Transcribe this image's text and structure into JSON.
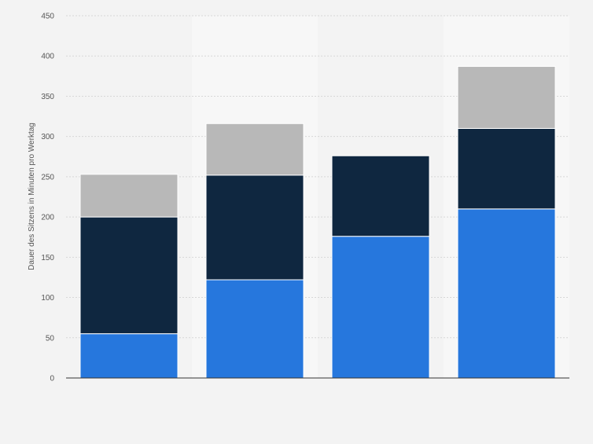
{
  "chart_data": {
    "type": "bar",
    "stacked": true,
    "title": "",
    "xlabel": "",
    "ylabel": "Dauer des Sitzens in Minuten pro Werktag",
    "ylim": [
      0,
      450
    ],
    "yticks": [
      0,
      50,
      100,
      150,
      200,
      250,
      300,
      350,
      400,
      450
    ],
    "categories": [
      "",
      "",
      "",
      ""
    ],
    "series": [
      {
        "values": [
          55,
          122,
          176,
          210
        ],
        "color": "#2677dd"
      },
      {
        "values": [
          145,
          130,
          100,
          100
        ],
        "color": "#0f2740"
      },
      {
        "values": [
          53,
          64,
          0,
          77
        ],
        "color": "#b8b8b8"
      }
    ],
    "grid": true,
    "legend": "none"
  },
  "colors": {
    "background": "#f3f3f3",
    "alt_band": "#f7f7f7",
    "grid": "#d7d7d7",
    "axis": "#333333",
    "tick_text": "#555555"
  }
}
